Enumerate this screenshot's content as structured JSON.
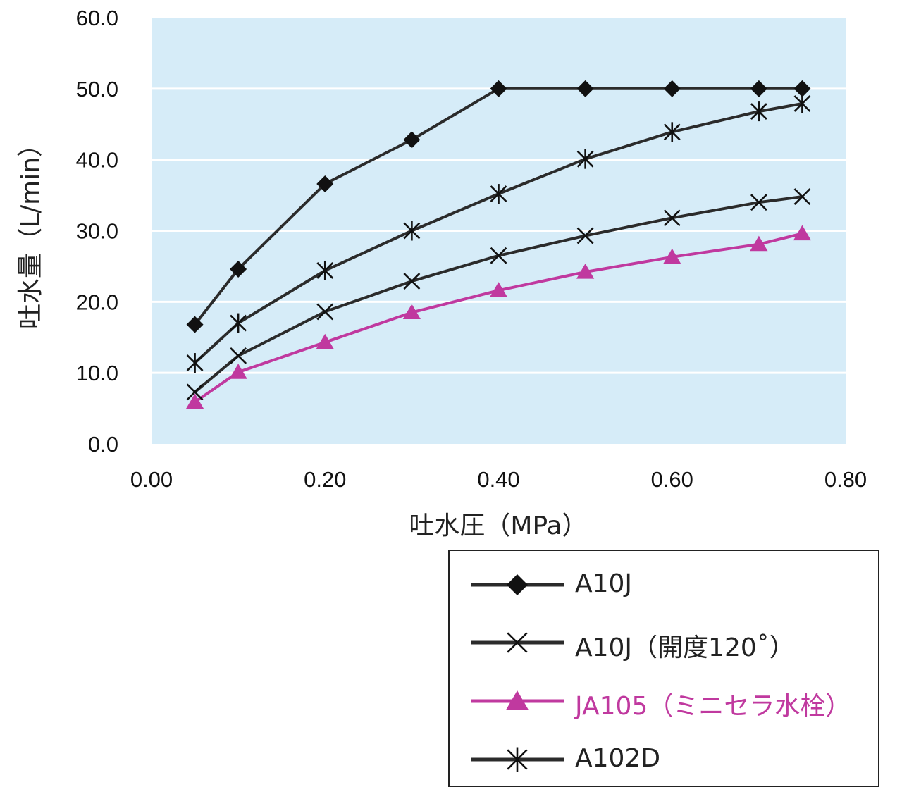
{
  "chart_data": {
    "type": "line",
    "xlabel": "吐水圧（MPa）",
    "ylabel": "吐水量（L/min）",
    "xlim": [
      0,
      0.8
    ],
    "ylim": [
      0,
      60
    ],
    "xticks": [
      "0.00",
      "0.20",
      "0.40",
      "0.60",
      "0.80"
    ],
    "yticks": [
      "0.0",
      "10.0",
      "20.0",
      "30.0",
      "40.0",
      "50.0",
      "60.0"
    ],
    "grid": "horizontal",
    "background": "#d6ecf8",
    "legend_position": "bottom-right",
    "series": [
      {
        "name": "A10J",
        "marker": "diamond",
        "color": "#2b2b2b",
        "x": [
          0.05,
          0.1,
          0.2,
          0.3,
          0.4,
          0.5,
          0.6,
          0.7,
          0.75
        ],
        "y": [
          16.8,
          24.6,
          36.6,
          42.8,
          50.0,
          50.0,
          50.0,
          50.0,
          50.0
        ]
      },
      {
        "name": "A10J（開度120˚）",
        "marker": "x",
        "color": "#2b2b2b",
        "x": [
          0.05,
          0.1,
          0.2,
          0.3,
          0.4,
          0.5,
          0.6,
          0.7,
          0.75
        ],
        "y": [
          7.3,
          12.4,
          18.6,
          22.9,
          26.5,
          29.3,
          31.8,
          34.0,
          34.8
        ]
      },
      {
        "name": "JA105（ミニセラ水栓）",
        "marker": "triangle",
        "color": "#c0399f",
        "x": [
          0.05,
          0.1,
          0.2,
          0.3,
          0.4,
          0.5,
          0.6,
          0.7,
          0.75
        ],
        "y": [
          5.9,
          10.1,
          14.3,
          18.5,
          21.6,
          24.2,
          26.3,
          28.1,
          29.6
        ]
      },
      {
        "name": "A102D",
        "marker": "asterisk",
        "color": "#2b2b2b",
        "x": [
          0.05,
          0.1,
          0.2,
          0.3,
          0.4,
          0.5,
          0.6,
          0.7,
          0.75
        ],
        "y": [
          11.4,
          17.0,
          24.4,
          30.0,
          35.2,
          40.1,
          43.9,
          46.8,
          47.9
        ]
      }
    ]
  }
}
